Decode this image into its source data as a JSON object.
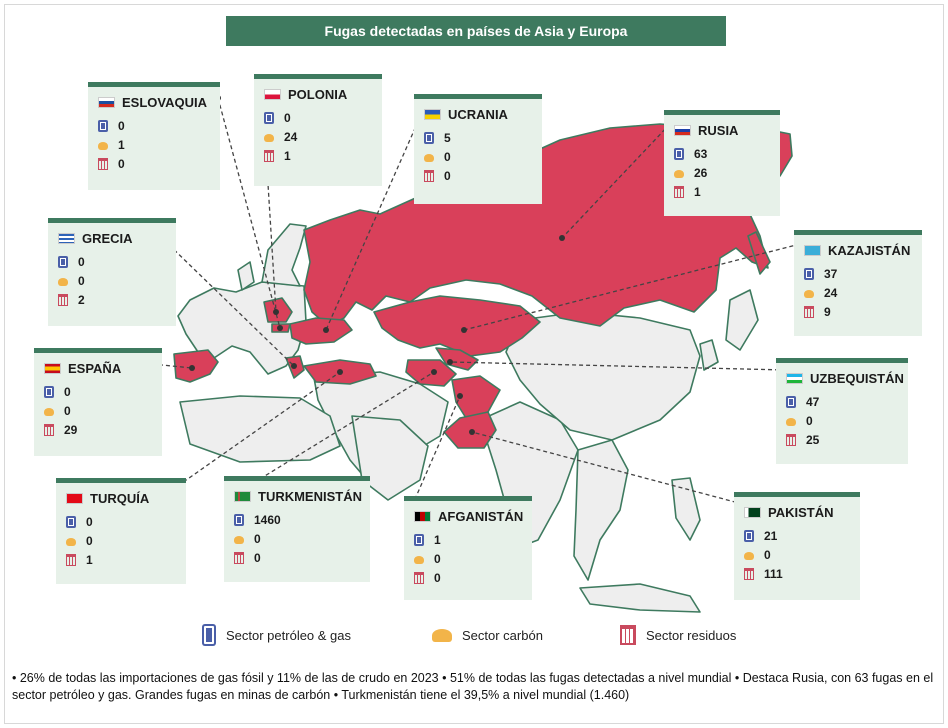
{
  "title": "Fugas detectadas en países de Asia y Europa",
  "colors": {
    "accent_green": "#3e7a5f",
    "card_bg": "#e7f1e9",
    "highlight_country": "#d9405a",
    "other_land": "#eeeeee",
    "borders": "#3e7a5f"
  },
  "countries": [
    {
      "name": "ESLOVAQUIA",
      "oil_gas": "0",
      "coal": "1",
      "waste": "0",
      "flag_icon": "slovakia-flag-icon"
    },
    {
      "name": "POLONIA",
      "oil_gas": "0",
      "coal": "24",
      "waste": "1",
      "flag_icon": "poland-flag-icon"
    },
    {
      "name": "UCRANIA",
      "oil_gas": "5",
      "coal": "0",
      "waste": "0",
      "flag_icon": "ukraine-flag-icon"
    },
    {
      "name": "RUSIA",
      "oil_gas": "63",
      "coal": "26",
      "waste": "1",
      "flag_icon": "russia-flag-icon"
    },
    {
      "name": "GRECIA",
      "oil_gas": "0",
      "coal": "0",
      "waste": "2",
      "flag_icon": "greece-flag-icon"
    },
    {
      "name": "KAZAJISTÁN",
      "oil_gas": "37",
      "coal": "24",
      "waste": "9",
      "flag_icon": "kazakhstan-flag-icon"
    },
    {
      "name": "ESPAÑA",
      "oil_gas": "0",
      "coal": "0",
      "waste": "29",
      "flag_icon": "spain-flag-icon"
    },
    {
      "name": "UZBEQUISTÁN",
      "oil_gas": "47",
      "coal": "0",
      "waste": "25",
      "flag_icon": "uzbekistan-flag-icon"
    },
    {
      "name": "TURQUÍA",
      "oil_gas": "0",
      "coal": "0",
      "waste": "1",
      "flag_icon": "turkey-flag-icon"
    },
    {
      "name": "TURKMENISTÁN",
      "oil_gas": "1460",
      "coal": "0",
      "waste": "0",
      "flag_icon": "turkmenistan-flag-icon"
    },
    {
      "name": "AFGANISTÁN",
      "oil_gas": "1",
      "coal": "0",
      "waste": "0",
      "flag_icon": "afghanistan-flag-icon"
    },
    {
      "name": "PAKISTÁN",
      "oil_gas": "21",
      "coal": "0",
      "waste": "111",
      "flag_icon": "pakistan-flag-icon"
    }
  ],
  "legend": {
    "oil_gas": "Sector petróleo & gas",
    "coal": "Sector carbón",
    "waste": "Sector residuos"
  },
  "footer": "• 26% de todas las importaciones de gas fósil y 11% de las de crudo en 2023 • 51% de todas las fugas detectadas a nivel mundial • Destaca Rusia, con 63 fugas en el sector petróleo y gas.  Grandes fugas en minas de carbón • Turkmenistán tiene el 39,5% a nivel mundial (1.460)"
}
